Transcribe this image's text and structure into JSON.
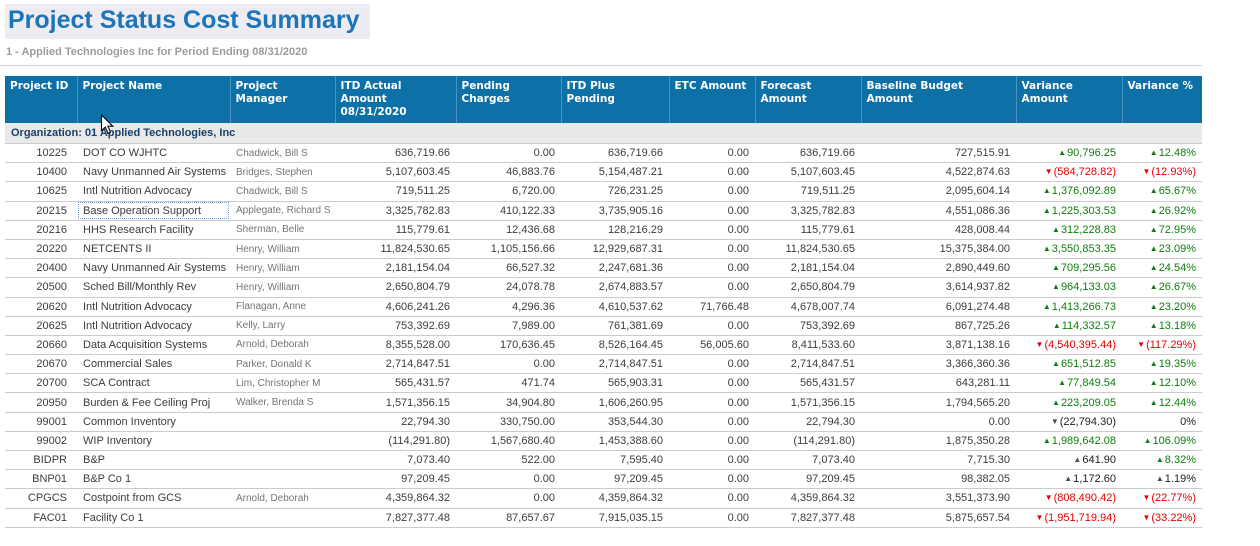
{
  "page": {
    "title": "Project Status Cost Summary",
    "subtitle": "1 - Applied Technologies Inc for Period Ending 08/31/2020"
  },
  "colors": {
    "header_bar": "#0d71a8",
    "title_text": "#1c74b9",
    "positive_green": "#0f7d0f",
    "negative_red": "#e60000",
    "neutral_gray": "#4d4d4d",
    "group_row_bg": "#e9e9e9"
  },
  "table": {
    "group_label": "Organization: 01 Applied Technologies, Inc",
    "columns": [
      {
        "key": "id",
        "label": "Project ID"
      },
      {
        "key": "name",
        "label": "Project Name"
      },
      {
        "key": "manager",
        "label": "Project Manager"
      },
      {
        "key": "itd_actual",
        "label": "ITD Actual Amount\n08/31/2020"
      },
      {
        "key": "pending",
        "label": "Pending Charges"
      },
      {
        "key": "itd_plus_pending",
        "label": "ITD Plus Pending"
      },
      {
        "key": "etc",
        "label": "ETC Amount"
      },
      {
        "key": "forecast",
        "label": "Forecast Amount"
      },
      {
        "key": "baseline",
        "label": "Baseline Budget Amount"
      },
      {
        "key": "variance_amount",
        "label": "Variance Amount"
      },
      {
        "key": "variance_pct",
        "label": "Variance %"
      }
    ],
    "rows": [
      {
        "id": "10225",
        "name": "DOT CO WJHTC",
        "manager": "Chadwick, Bill S",
        "itd_actual": "636,719.66",
        "pending": "0.00",
        "itd_plus_pending": "636,719.66",
        "etc": "0.00",
        "forecast": "636,719.66",
        "baseline": "727,515.91",
        "variance_amount": {
          "dir": "up",
          "text": "90,796.25",
          "tone": "green"
        },
        "variance_pct": {
          "dir": "up",
          "text": "12.48%",
          "tone": "green"
        }
      },
      {
        "id": "10400",
        "name": "Navy Unmanned Air Systems",
        "manager": "Bridges, Stephen",
        "itd_actual": "5,107,603.45",
        "pending": "46,883.76",
        "itd_plus_pending": "5,154,487.21",
        "etc": "0.00",
        "forecast": "5,107,603.45",
        "baseline": "4,522,874.63",
        "variance_amount": {
          "dir": "down",
          "text": "(584,728.82)",
          "tone": "red"
        },
        "variance_pct": {
          "dir": "down",
          "text": "(12.93%)",
          "tone": "red"
        }
      },
      {
        "id": "10625",
        "name": "Intl Nutrition Advocacy",
        "manager": "Chadwick, Bill S",
        "itd_actual": "719,511.25",
        "pending": "6,720.00",
        "itd_plus_pending": "726,231.25",
        "etc": "0.00",
        "forecast": "719,511.25",
        "baseline": "2,095,604.14",
        "variance_amount": {
          "dir": "up",
          "text": "1,376,092.89",
          "tone": "green"
        },
        "variance_pct": {
          "dir": "up",
          "text": "65.67%",
          "tone": "green"
        }
      },
      {
        "id": "20215",
        "name": "Base Operation Support",
        "name_focused": true,
        "manager": "Applegate, Richard S",
        "itd_actual": "3,325,782.83",
        "pending": "410,122.33",
        "itd_plus_pending": "3,735,905.16",
        "etc": "0.00",
        "forecast": "3,325,782.83",
        "baseline": "4,551,086.36",
        "variance_amount": {
          "dir": "up",
          "text": "1,225,303.53",
          "tone": "green"
        },
        "variance_pct": {
          "dir": "up",
          "text": "26.92%",
          "tone": "green"
        }
      },
      {
        "id": "20216",
        "name": "HHS Research Facility",
        "manager": "Sherman, Belle",
        "itd_actual": "115,779.61",
        "pending": "12,436.68",
        "itd_plus_pending": "128,216.29",
        "etc": "0.00",
        "forecast": "115,779.61",
        "baseline": "428,008.44",
        "variance_amount": {
          "dir": "up",
          "text": "312,228.83",
          "tone": "green"
        },
        "variance_pct": {
          "dir": "up",
          "text": "72.95%",
          "tone": "green"
        }
      },
      {
        "id": "20220",
        "name": "NETCENTS II",
        "manager": "Henry, William",
        "itd_actual": "11,824,530.65",
        "pending": "1,105,156.66",
        "itd_plus_pending": "12,929,687.31",
        "etc": "0.00",
        "forecast": "11,824,530.65",
        "baseline": "15,375,384.00",
        "variance_amount": {
          "dir": "up",
          "text": "3,550,853.35",
          "tone": "green"
        },
        "variance_pct": {
          "dir": "up",
          "text": "23.09%",
          "tone": "green"
        }
      },
      {
        "id": "20400",
        "name": "Navy Unmanned Air Systems",
        "manager": "Henry, William",
        "itd_actual": "2,181,154.04",
        "pending": "66,527.32",
        "itd_plus_pending": "2,247,681.36",
        "etc": "0.00",
        "forecast": "2,181,154.04",
        "baseline": "2,890,449.60",
        "variance_amount": {
          "dir": "up",
          "text": "709,295.56",
          "tone": "green"
        },
        "variance_pct": {
          "dir": "up",
          "text": "24.54%",
          "tone": "green"
        }
      },
      {
        "id": "20500",
        "name": "Sched Bill/Monthly Rev",
        "manager": "Henry, William",
        "itd_actual": "2,650,804.79",
        "pending": "24,078.78",
        "itd_plus_pending": "2,674,883.57",
        "etc": "0.00",
        "forecast": "2,650,804.79",
        "baseline": "3,614,937.82",
        "variance_amount": {
          "dir": "up",
          "text": "964,133.03",
          "tone": "green"
        },
        "variance_pct": {
          "dir": "up",
          "text": "26.67%",
          "tone": "green"
        }
      },
      {
        "id": "20620",
        "name": "Intl Nutrition Advocacy",
        "manager": "Flanagan, Anne",
        "itd_actual": "4,606,241.26",
        "pending": "4,296.36",
        "itd_plus_pending": "4,610,537.62",
        "etc": "71,766.48",
        "forecast": "4,678,007.74",
        "baseline": "6,091,274.48",
        "variance_amount": {
          "dir": "up",
          "text": "1,413,266.73",
          "tone": "green"
        },
        "variance_pct": {
          "dir": "up",
          "text": "23.20%",
          "tone": "green"
        }
      },
      {
        "id": "20625",
        "name": "Intl Nutrition Advocacy",
        "manager": "Kelly, Larry",
        "itd_actual": "753,392.69",
        "pending": "7,989.00",
        "itd_plus_pending": "761,381.69",
        "etc": "0.00",
        "forecast": "753,392.69",
        "baseline": "867,725.26",
        "variance_amount": {
          "dir": "up",
          "text": "114,332.57",
          "tone": "green"
        },
        "variance_pct": {
          "dir": "up",
          "text": "13.18%",
          "tone": "green"
        }
      },
      {
        "id": "20660",
        "name": "Data Acquisition Systems",
        "manager": "Arnold, Deborah",
        "itd_actual": "8,355,528.00",
        "pending": "170,636.45",
        "itd_plus_pending": "8,526,164.45",
        "etc": "56,005.60",
        "forecast": "8,411,533.60",
        "baseline": "3,871,138.16",
        "variance_amount": {
          "dir": "down",
          "text": "(4,540,395.44)",
          "tone": "red"
        },
        "variance_pct": {
          "dir": "down",
          "text": "(117.29%)",
          "tone": "red"
        }
      },
      {
        "id": "20670",
        "name": "Commercial Sales",
        "manager": "Parker, Donald K",
        "itd_actual": "2,714,847.51",
        "pending": "0.00",
        "itd_plus_pending": "2,714,847.51",
        "etc": "0.00",
        "forecast": "2,714,847.51",
        "baseline": "3,366,360.36",
        "variance_amount": {
          "dir": "up",
          "text": "651,512.85",
          "tone": "green"
        },
        "variance_pct": {
          "dir": "up",
          "text": "19.35%",
          "tone": "green"
        }
      },
      {
        "id": "20700",
        "name": "SCA Contract",
        "manager": "Lim, Christopher M",
        "itd_actual": "565,431.57",
        "pending": "471.74",
        "itd_plus_pending": "565,903.31",
        "etc": "0.00",
        "forecast": "565,431.57",
        "baseline": "643,281.11",
        "variance_amount": {
          "dir": "up",
          "text": "77,849.54",
          "tone": "green"
        },
        "variance_pct": {
          "dir": "up",
          "text": "12.10%",
          "tone": "green"
        }
      },
      {
        "id": "20950",
        "name": "Burden & Fee Ceiling Proj",
        "manager": "Walker, Brenda S",
        "itd_actual": "1,571,356.15",
        "pending": "34,904.80",
        "itd_plus_pending": "1,606,260.95",
        "etc": "0.00",
        "forecast": "1,571,356.15",
        "baseline": "1,794,565.20",
        "variance_amount": {
          "dir": "up",
          "text": "223,209.05",
          "tone": "green"
        },
        "variance_pct": {
          "dir": "up",
          "text": "12.44%",
          "tone": "green"
        }
      },
      {
        "id": "99001",
        "name": "Common Inventory",
        "manager": "",
        "itd_actual": "22,794.30",
        "pending": "330,750.00",
        "itd_plus_pending": "353,544.30",
        "etc": "0.00",
        "forecast": "22,794.30",
        "baseline": "0.00",
        "variance_amount": {
          "dir": "down",
          "text": "(22,794.30)",
          "tone": "neutral"
        },
        "variance_pct": {
          "dir": null,
          "text": "0%",
          "tone": "plain"
        }
      },
      {
        "id": "99002",
        "name": "WIP Inventory",
        "manager": "",
        "itd_actual": "(114,291.80)",
        "pending": "1,567,680.40",
        "itd_plus_pending": "1,453,388.60",
        "etc": "0.00",
        "forecast": "(114,291.80)",
        "baseline": "1,875,350.28",
        "variance_amount": {
          "dir": "up",
          "text": "1,989,642.08",
          "tone": "green"
        },
        "variance_pct": {
          "dir": "up",
          "text": "106.09%",
          "tone": "green"
        }
      },
      {
        "id": "BIDPR",
        "name": "B&P",
        "manager": "",
        "itd_actual": "7,073.40",
        "pending": "522.00",
        "itd_plus_pending": "7,595.40",
        "etc": "0.00",
        "forecast": "7,073.40",
        "baseline": "7,715.30",
        "variance_amount": {
          "dir": "up",
          "text": "641.90",
          "tone": "neutral"
        },
        "variance_pct": {
          "dir": "up",
          "text": "8.32%",
          "tone": "green"
        }
      },
      {
        "id": "BNP01",
        "name": "B&P Co 1",
        "manager": "",
        "itd_actual": "97,209.45",
        "pending": "0.00",
        "itd_plus_pending": "97,209.45",
        "etc": "0.00",
        "forecast": "97,209.45",
        "baseline": "98,382.05",
        "variance_amount": {
          "dir": "up",
          "text": "1,172.60",
          "tone": "neutral"
        },
        "variance_pct": {
          "dir": "up",
          "text": "1.19%",
          "tone": "neutral"
        }
      },
      {
        "id": "CPGCS",
        "name": "Costpoint from GCS",
        "manager": "Arnold, Deborah",
        "itd_actual": "4,359,864.32",
        "pending": "0.00",
        "itd_plus_pending": "4,359,864.32",
        "etc": "0.00",
        "forecast": "4,359,864.32",
        "baseline": "3,551,373.90",
        "variance_amount": {
          "dir": "down",
          "text": "(808,490.42)",
          "tone": "red"
        },
        "variance_pct": {
          "dir": "down",
          "text": "(22.77%)",
          "tone": "red"
        }
      },
      {
        "id": "FAC01",
        "name": "Facility Co 1",
        "manager": "",
        "itd_actual": "7,827,377.48",
        "pending": "87,657.67",
        "itd_plus_pending": "7,915,035.15",
        "etc": "0.00",
        "forecast": "7,827,377.48",
        "baseline": "5,875,657.54",
        "variance_amount": {
          "dir": "down",
          "text": "(1,951,719.94)",
          "tone": "red"
        },
        "variance_pct": {
          "dir": "down",
          "text": "(33.22%)",
          "tone": "red"
        }
      }
    ]
  }
}
